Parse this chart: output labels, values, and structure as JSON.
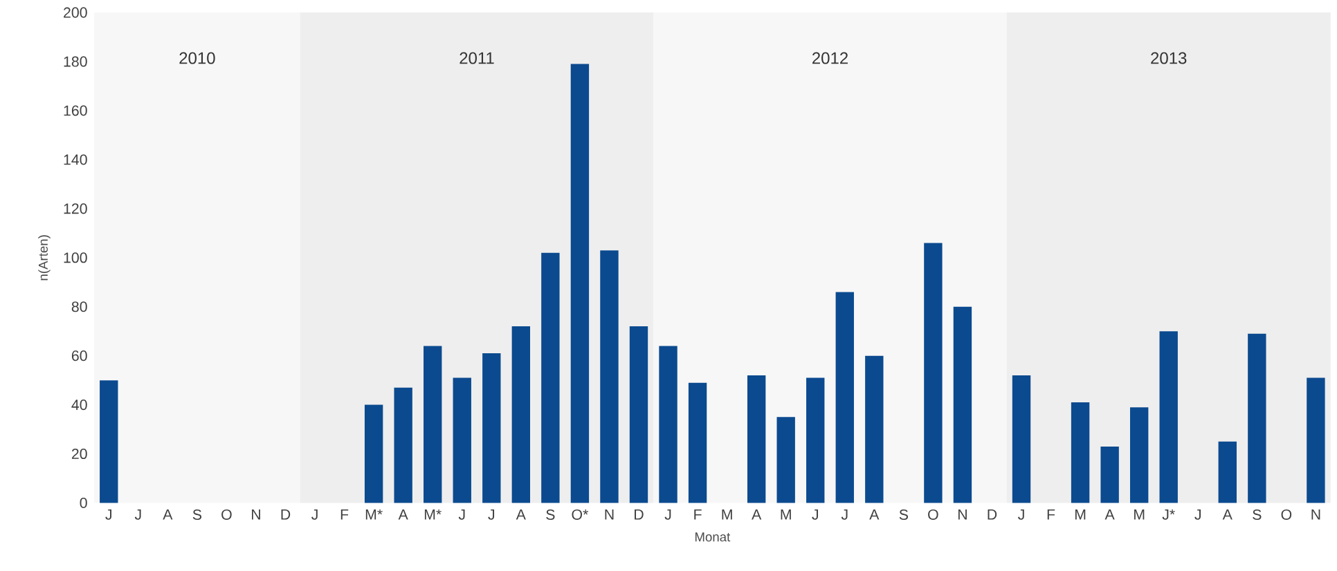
{
  "chart_data": {
    "type": "bar",
    "xlabel": "Monat",
    "ylabel": "n(Arten)",
    "categories": [
      "J",
      "J",
      "A",
      "S",
      "O",
      "N",
      "D",
      "J",
      "F",
      "M*",
      "A",
      "M*",
      "J",
      "J",
      "A",
      "S",
      "O*",
      "N",
      "D",
      "J",
      "F",
      "M",
      "A",
      "M",
      "J",
      "J",
      "A",
      "S",
      "O",
      "N",
      "D",
      "J",
      "F",
      "M",
      "A",
      "M",
      "J*",
      "J",
      "A",
      "S",
      "O",
      "N"
    ],
    "values": [
      50,
      null,
      null,
      null,
      null,
      null,
      null,
      null,
      null,
      40,
      47,
      64,
      51,
      61,
      72,
      102,
      179,
      103,
      72,
      64,
      49,
      null,
      52,
      35,
      51,
      86,
      60,
      null,
      106,
      80,
      null,
      52,
      null,
      41,
      23,
      39,
      70,
      null,
      25,
      69,
      null,
      51
    ],
    "color": "#0b4a8f",
    "ylim": [
      0,
      200
    ],
    "yticks": [
      0,
      20,
      40,
      60,
      80,
      100,
      120,
      140,
      160,
      180,
      200
    ],
    "annotations": [
      "2010",
      "2011",
      "2012",
      "2013"
    ]
  }
}
